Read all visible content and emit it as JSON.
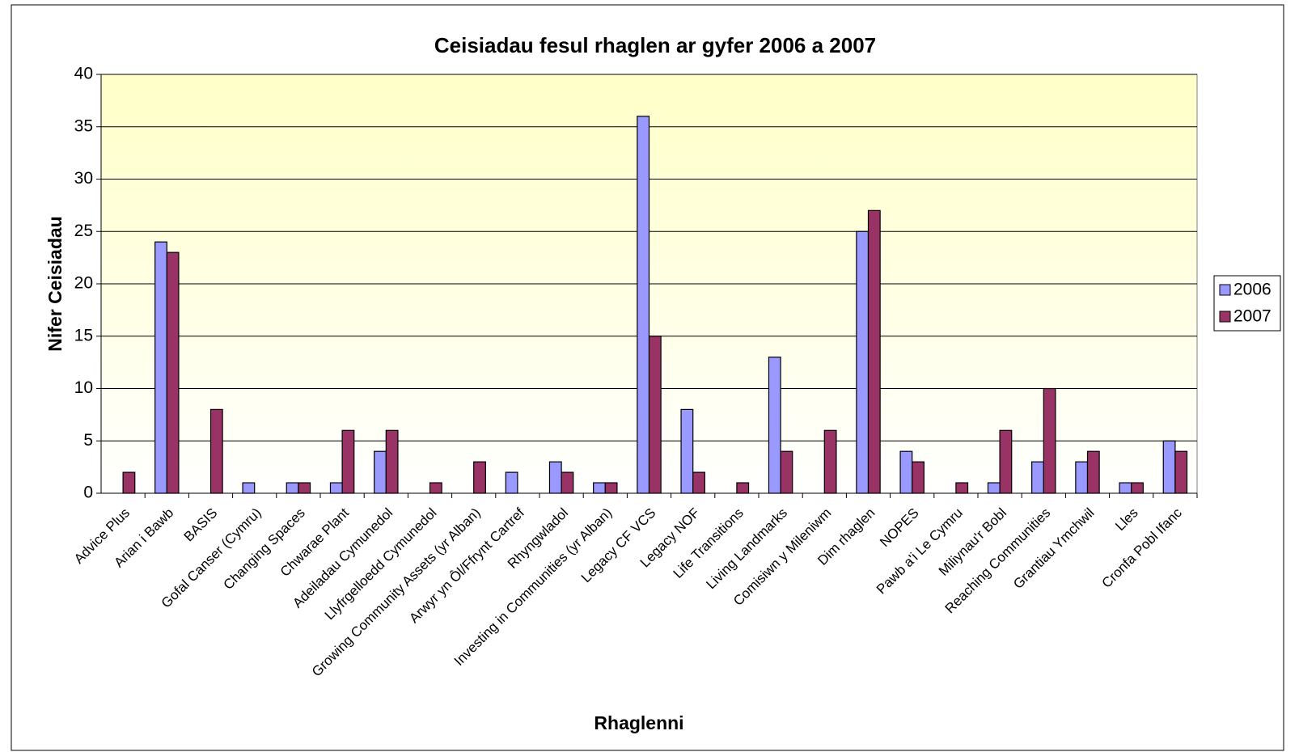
{
  "chart_data": {
    "type": "bar",
    "title": "Ceisiadau fesul rhaglen ar gyfer 2006 a 2007",
    "x_label": "Rhaglenni",
    "y_label": "Nifer Ceisiadau",
    "categories": [
      "Advice Plus",
      "Arian i Bawb",
      "BASIS",
      "Gofal Canser (Cymru)",
      "Changing Spaces",
      "Chwarae Plant",
      "Adeiladau Cymunedol",
      "Llyfrgelloedd Cymunedol",
      "Growing Community Assets (yr Alban)",
      "Arwyr yn Ôl/Ffrynt Cartref",
      "Rhyngwladol",
      "Investing in Communities (yr Alban)",
      "Legacy CF VCS",
      "Legacy NOF",
      "Life Transitions",
      "Living Landmarks",
      "Comisiwn y Mileniwm",
      "Dim rhaglen",
      "NOPES",
      "Pawb a'i Le Cymru",
      "Miliynau'r Bobl",
      "Reaching Communities",
      "Grantiau Ymchwil",
      "Lles",
      "Cronfa Pobl Ifanc"
    ],
    "series": [
      {
        "name": "2006",
        "color": "#9999ff",
        "values": [
          0,
          24,
          0,
          1,
          1,
          1,
          4,
          0,
          0,
          2,
          3,
          1,
          36,
          8,
          0,
          13,
          0,
          25,
          4,
          0,
          1,
          3,
          3,
          1,
          5
        ]
      },
      {
        "name": "2007",
        "color": "#993366",
        "values": [
          2,
          23,
          8,
          0,
          1,
          6,
          6,
          1,
          3,
          0,
          2,
          1,
          15,
          2,
          1,
          4,
          6,
          27,
          3,
          1,
          6,
          10,
          4,
          1,
          4
        ]
      }
    ],
    "ylim": [
      0,
      40
    ],
    "yticks": [
      0,
      5,
      10,
      15,
      20,
      25,
      30,
      35,
      40
    ],
    "grid": true,
    "legend": "right"
  }
}
